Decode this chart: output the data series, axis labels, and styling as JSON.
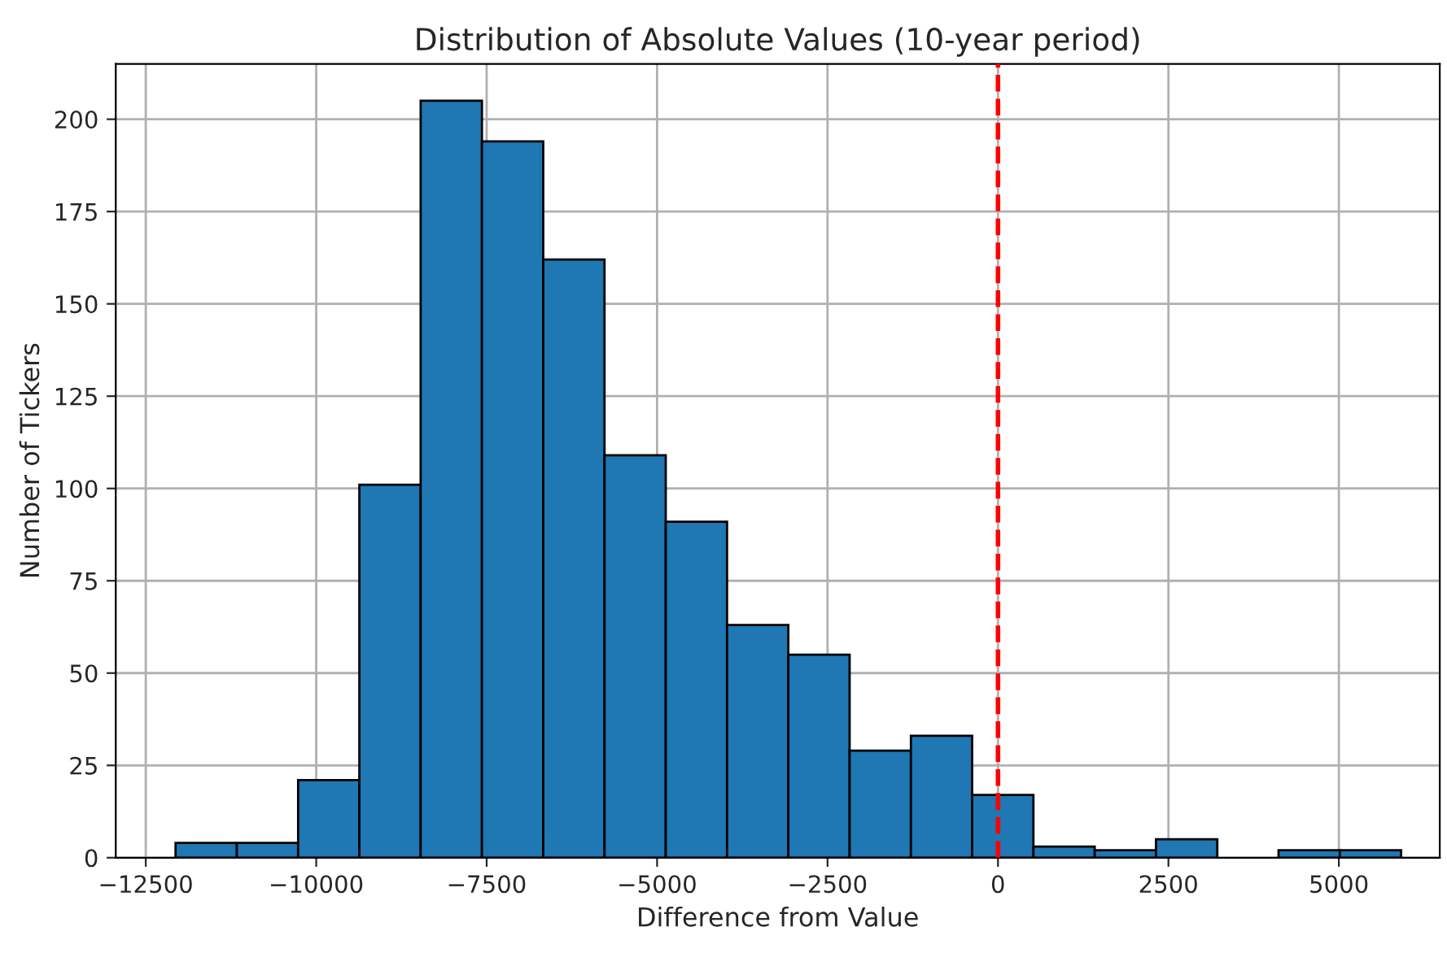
{
  "chart_data": {
    "type": "histogram",
    "title": "Distribution of Absolute Values (10-year period)",
    "xlabel": "Difference from Value",
    "ylabel": "Number of Tickers",
    "bins": [
      -12063,
      -11164,
      -10265,
      -9367,
      -8468,
      -7569,
      -6670,
      -5771,
      -4873,
      -3974,
      -3075,
      -2176,
      -1277,
      -379,
      520,
      1419,
      2318,
      3217,
      4115,
      5014,
      5913
    ],
    "values": [
      4,
      4,
      21,
      101,
      205,
      194,
      162,
      109,
      91,
      63,
      55,
      29,
      33,
      17,
      3,
      2,
      5,
      0,
      2,
      2
    ],
    "color": "#1f77b4",
    "xlim": [
      -12940,
      6480
    ],
    "ylim": [
      0,
      215
    ],
    "xticks": [
      {
        "value": -12500,
        "label": "−12500"
      },
      {
        "value": -10000,
        "label": "−10000"
      },
      {
        "value": -7500,
        "label": "−7500"
      },
      {
        "value": -5000,
        "label": "−5000"
      },
      {
        "value": -2500,
        "label": "−2500"
      },
      0,
      2500,
      5000
    ],
    "yticks": [
      0,
      25,
      50,
      75,
      100,
      125,
      150,
      175,
      200
    ],
    "grid": true,
    "ref_lines": [
      {
        "axis": "x",
        "value": 0,
        "color": "#ff0000",
        "line_style": "dashed"
      }
    ]
  }
}
